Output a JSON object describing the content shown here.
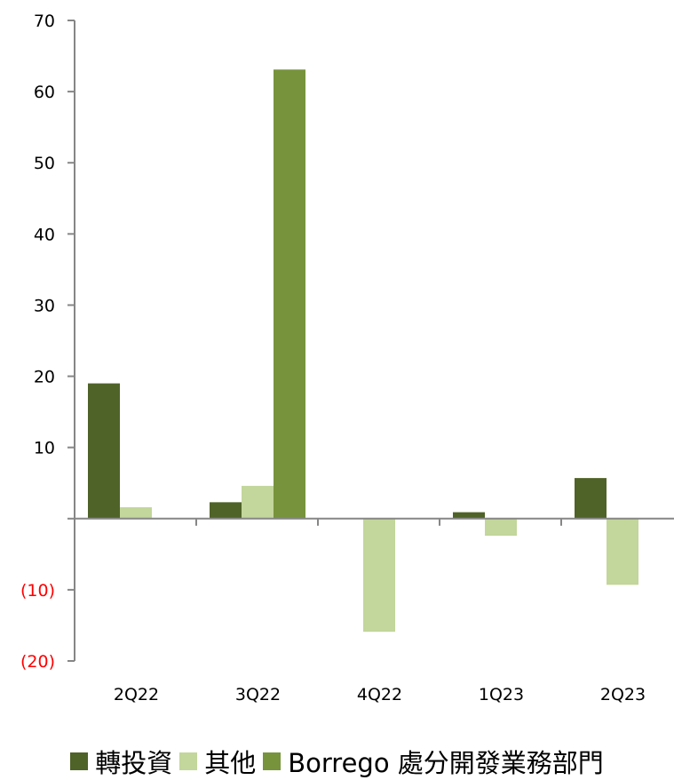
{
  "chart_data": {
    "type": "bar",
    "categories": [
      "2Q22",
      "3Q22",
      "4Q22",
      "1Q23",
      "2Q23"
    ],
    "series": [
      {
        "name": "轉投資",
        "color": "#4f6228",
        "values": [
          19.0,
          2.3,
          0.0,
          0.9,
          5.7
        ]
      },
      {
        "name": "其他",
        "color": "#c3d69b",
        "values": [
          1.6,
          4.6,
          -15.9,
          -2.4,
          -9.3
        ]
      },
      {
        "name": "Borrego 處分開發業務部門",
        "color": "#77933c",
        "values": [
          0.0,
          63.1,
          0.0,
          0.0,
          0.0
        ]
      }
    ],
    "ylim": [
      -20,
      70
    ],
    "yticks": [
      {
        "value": 70,
        "label": "70"
      },
      {
        "value": 60,
        "label": "60"
      },
      {
        "value": 50,
        "label": "50"
      },
      {
        "value": 40,
        "label": "40"
      },
      {
        "value": 30,
        "label": "30"
      },
      {
        "value": 20,
        "label": "20"
      },
      {
        "value": 10,
        "label": "10"
      },
      {
        "value": -10,
        "label": "(10)"
      },
      {
        "value": -20,
        "label": "(20)"
      }
    ],
    "negative_label_color": "#ff0000",
    "legend_position": "bottom",
    "grid": false
  }
}
